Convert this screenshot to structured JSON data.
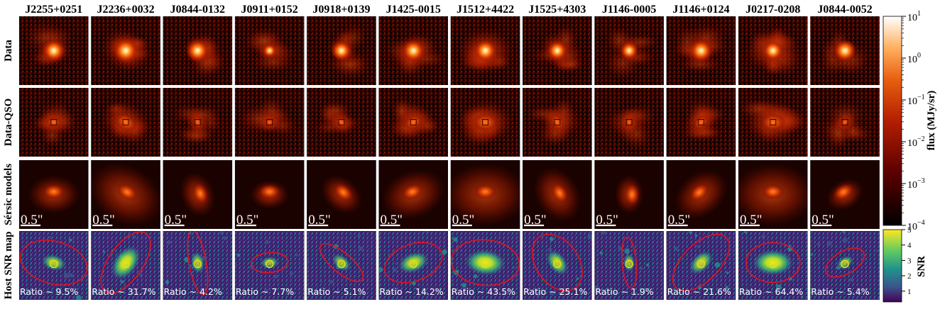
{
  "figure": {
    "objects": [
      "J2255+0251",
      "J2236+0032",
      "J0844-0132",
      "J0911+0152",
      "J0918+0139",
      "J1425-0015",
      "J1512+4422",
      "J1525+4303",
      "J1146-0005",
      "J1146+0124",
      "J0217-0208",
      "J0844-0052"
    ],
    "row_labels": [
      "Data",
      "Data-QSO",
      "Sérsic models",
      "Host SNR map"
    ],
    "scale_bar_label": "0.5\"",
    "ratio_prefix": "Ratio",
    "ratio_symbol": "∼",
    "ratios": [
      "9.5%",
      "31.7%",
      "4.2%",
      "7.7%",
      "5.1%",
      "14.2%",
      "43.5%",
      "25.1%",
      "1.9%",
      "21.6%",
      "64.4%",
      "5.4%"
    ],
    "flux_colorbar": {
      "label": "flux (MJy/sr)",
      "scale": "log",
      "ticks": [
        "10",
        "10",
        "10",
        "10",
        "10",
        "10"
      ],
      "tick_exponents": [
        "1",
        "0",
        "−1",
        "−2",
        "−3",
        "−4"
      ],
      "colormap": "gist_heat"
    },
    "snr_colorbar": {
      "label": "SNR",
      "scale": "linear",
      "ticks": [
        "5",
        "4",
        "3",
        "2",
        "1"
      ],
      "colormap": "viridis"
    },
    "colors": {
      "ellipse": "#e0141e",
      "separator": "#ffffff",
      "cutout_text": "#ffffff"
    }
  }
}
